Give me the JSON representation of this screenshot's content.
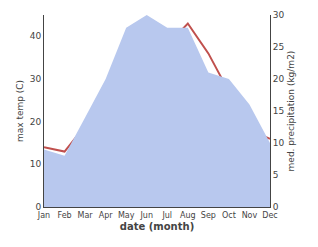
{
  "chart_data": {
    "type": "line",
    "categories": [
      "Jan",
      "Feb",
      "Mar",
      "Apr",
      "May",
      "Jun",
      "Jul",
      "Aug",
      "Sep",
      "Oct",
      "Nov",
      "Dec"
    ],
    "series": [
      {
        "type": "area",
        "color": "#b8c8ee",
        "axis": "y2",
        "values": [
          9,
          8,
          14,
          20,
          28,
          30,
          28,
          28,
          21,
          20,
          16,
          10
        ]
      },
      {
        "type": "line",
        "color": "#c0504d",
        "values": [
          14,
          13,
          19,
          28,
          25,
          32,
          38,
          43,
          36,
          27,
          18,
          16
        ]
      }
    ],
    "xlabel": "date (month)",
    "ylabel": "max temp (C)",
    "y2label": "med. precipitation (kg/m2)",
    "ylim": [
      0,
      45
    ],
    "yticks": [
      0,
      10,
      20,
      30,
      40
    ],
    "y2lim": [
      0,
      30
    ],
    "y2ticks": [
      0,
      5,
      10,
      15,
      20,
      25,
      30
    ],
    "grid": false
  }
}
